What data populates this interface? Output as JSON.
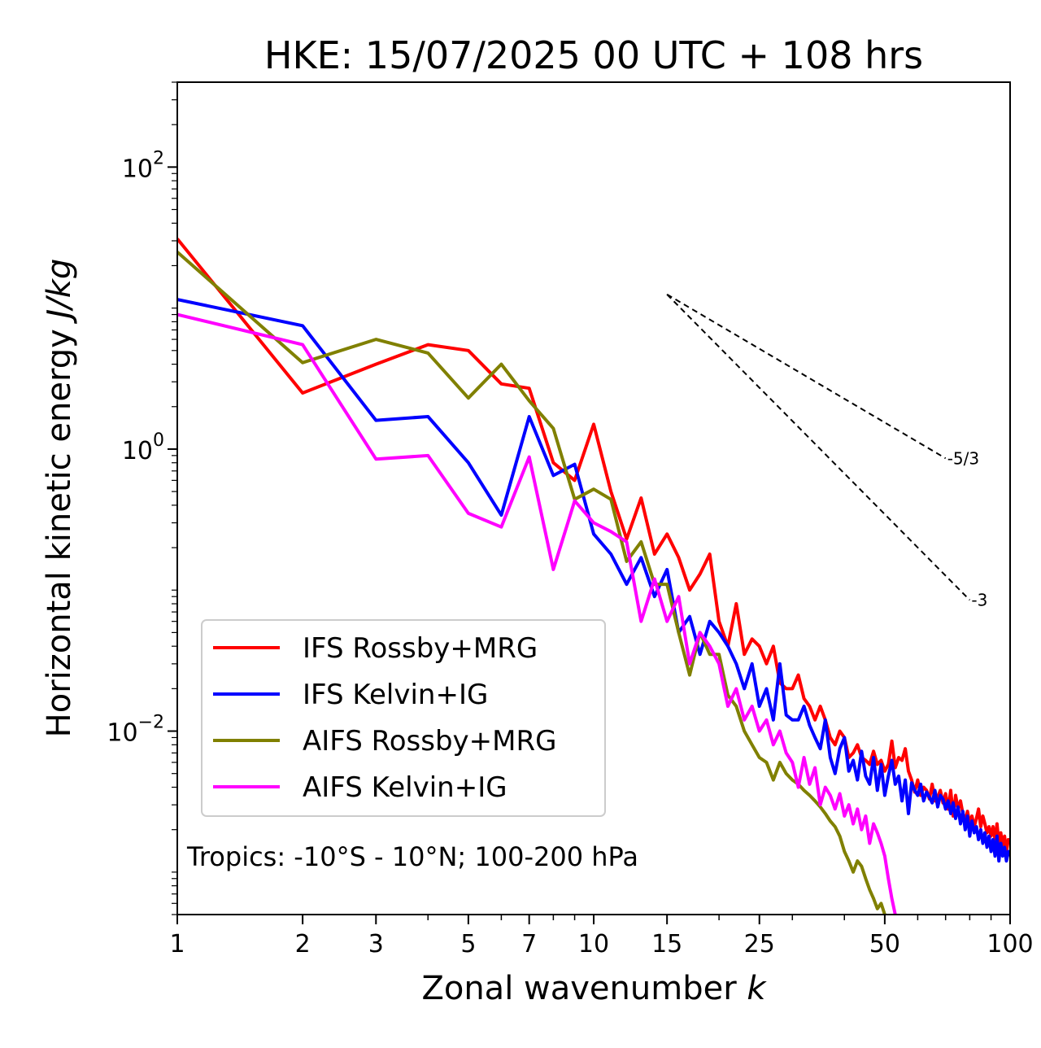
{
  "chart_data": {
    "type": "line",
    "title": "HKE: 15/07/2025 00 UTC + 108 hrs",
    "xlabel": "Zonal wavenumber",
    "xlabel_var": "k",
    "ylabel": "Horizontal kinetic energy",
    "ylabel_unit": "J/kg",
    "xscale": "log",
    "yscale": "log",
    "xlim": [
      1,
      100
    ],
    "ylim": [
      0.0005,
      400
    ],
    "x_ticks": [
      {
        "value": 1,
        "label": "1"
      },
      {
        "value": 2,
        "label": "2"
      },
      {
        "value": 3,
        "label": "3"
      },
      {
        "value": 5,
        "label": "5"
      },
      {
        "value": 7,
        "label": "7"
      },
      {
        "value": 10,
        "label": "10"
      },
      {
        "value": 15,
        "label": "15"
      },
      {
        "value": 25,
        "label": "25"
      },
      {
        "value": 50,
        "label": "50"
      },
      {
        "value": 100,
        "label": "100"
      }
    ],
    "y_ticks": [
      {
        "value": 0.01,
        "base": "10",
        "exp": "−2"
      },
      {
        "value": 1,
        "base": "10",
        "exp": "0"
      },
      {
        "value": 100,
        "base": "10",
        "exp": "2"
      }
    ],
    "annotation": "Tropics: -10°S - 10°N; 100-200 hPa",
    "legend_position": "lower-left",
    "slope_lines": [
      {
        "label": "-5/3",
        "x": [
          15,
          70
        ],
        "y": [
          12.5,
          0.86
        ]
      },
      {
        "label": "-3",
        "x": [
          15,
          80
        ],
        "y": [
          12.5,
          0.085
        ]
      }
    ],
    "series": [
      {
        "name": "IFS Rossby+MRG",
        "color": "#ff0000",
        "points": [
          [
            1,
            31
          ],
          [
            2,
            2.5
          ],
          [
            3,
            4.0
          ],
          [
            4,
            5.5
          ],
          [
            5,
            5.0
          ],
          [
            6,
            2.9
          ],
          [
            7,
            2.7
          ],
          [
            8,
            0.8
          ],
          [
            9,
            0.6
          ],
          [
            10,
            1.5
          ],
          [
            11,
            0.5
          ],
          [
            12,
            0.23
          ],
          [
            13,
            0.45
          ],
          [
            14,
            0.18
          ],
          [
            15,
            0.25
          ],
          [
            16,
            0.17
          ],
          [
            17,
            0.1
          ],
          [
            18,
            0.13
          ],
          [
            19,
            0.18
          ],
          [
            20,
            0.06
          ],
          [
            21,
            0.04
          ],
          [
            22,
            0.08
          ],
          [
            23,
            0.035
          ],
          [
            24,
            0.045
          ],
          [
            25,
            0.04
          ],
          [
            26,
            0.03
          ],
          [
            27,
            0.04
          ],
          [
            28,
            0.022
          ],
          [
            29,
            0.02
          ],
          [
            30,
            0.02
          ],
          [
            31,
            0.025
          ],
          [
            32,
            0.017
          ],
          [
            33,
            0.015
          ],
          [
            34,
            0.012
          ],
          [
            35,
            0.015
          ],
          [
            36,
            0.012
          ],
          [
            37,
            0.009
          ],
          [
            38,
            0.008
          ],
          [
            39,
            0.01
          ],
          [
            40,
            0.009
          ],
          [
            41,
            0.0065
          ],
          [
            42,
            0.007
          ],
          [
            43,
            0.008
          ],
          [
            44,
            0.0065
          ],
          [
            45,
            0.0062
          ],
          [
            46,
            0.0058
          ],
          [
            47,
            0.0072
          ],
          [
            48,
            0.0058
          ],
          [
            49,
            0.0062
          ],
          [
            50,
            0.0052
          ],
          [
            51,
            0.0058
          ],
          [
            52,
            0.0085
          ],
          [
            53,
            0.0055
          ],
          [
            54,
            0.0065
          ],
          [
            55,
            0.0062
          ],
          [
            56,
            0.0075
          ],
          [
            57,
            0.0052
          ],
          [
            58,
            0.0045
          ],
          [
            59,
            0.0037
          ],
          [
            60,
            0.0045
          ],
          [
            61,
            0.0035
          ],
          [
            62,
            0.004
          ],
          [
            63,
            0.0038
          ],
          [
            64,
            0.0033
          ],
          [
            65,
            0.0042
          ],
          [
            66,
            0.0032
          ],
          [
            67,
            0.0034
          ],
          [
            68,
            0.0038
          ],
          [
            69,
            0.0031
          ],
          [
            70,
            0.0036
          ],
          [
            71,
            0.0028
          ],
          [
            72,
            0.0038
          ],
          [
            73,
            0.0025
          ],
          [
            74,
            0.0035
          ],
          [
            75,
            0.0028
          ],
          [
            76,
            0.0032
          ],
          [
            77,
            0.0026
          ],
          [
            78,
            0.0023
          ],
          [
            79,
            0.0027
          ],
          [
            80,
            0.0022
          ],
          [
            81,
            0.0025
          ],
          [
            82,
            0.0021
          ],
          [
            83,
            0.0024
          ],
          [
            84,
            0.0028
          ],
          [
            85,
            0.0021
          ],
          [
            86,
            0.0025
          ],
          [
            87,
            0.0022
          ],
          [
            88,
            0.0019
          ],
          [
            89,
            0.0021
          ],
          [
            90,
            0.0018
          ],
          [
            91,
            0.0021
          ],
          [
            92,
            0.0017
          ],
          [
            93,
            0.0022
          ],
          [
            94,
            0.0016
          ],
          [
            95,
            0.0019
          ],
          [
            96,
            0.0015
          ],
          [
            97,
            0.0018
          ],
          [
            98,
            0.0014
          ],
          [
            99,
            0.0017
          ],
          [
            100,
            0.0016
          ]
        ]
      },
      {
        "name": "IFS Kelvin+IG",
        "color": "#0000ff",
        "points": [
          [
            1,
            11.5
          ],
          [
            2,
            7.5
          ],
          [
            3,
            1.6
          ],
          [
            4,
            1.7
          ],
          [
            5,
            0.8
          ],
          [
            6,
            0.34
          ],
          [
            7,
            1.7
          ],
          [
            8,
            0.65
          ],
          [
            9,
            0.78
          ],
          [
            10,
            0.25
          ],
          [
            11,
            0.18
          ],
          [
            12,
            0.11
          ],
          [
            13,
            0.17
          ],
          [
            14,
            0.09
          ],
          [
            15,
            0.14
          ],
          [
            16,
            0.05
          ],
          [
            17,
            0.065
          ],
          [
            18,
            0.035
          ],
          [
            19,
            0.06
          ],
          [
            20,
            0.05
          ],
          [
            21,
            0.04
          ],
          [
            22,
            0.03
          ],
          [
            23,
            0.02
          ],
          [
            24,
            0.03
          ],
          [
            25,
            0.015
          ],
          [
            26,
            0.02
          ],
          [
            27,
            0.012
          ],
          [
            28,
            0.03
          ],
          [
            29,
            0.013
          ],
          [
            30,
            0.012
          ],
          [
            31,
            0.012
          ],
          [
            32,
            0.015
          ],
          [
            33,
            0.011
          ],
          [
            34,
            0.009
          ],
          [
            35,
            0.0075
          ],
          [
            36,
            0.012
          ],
          [
            37,
            0.0065
          ],
          [
            38,
            0.005
          ],
          [
            39,
            0.0075
          ],
          [
            40,
            0.009
          ],
          [
            41,
            0.0052
          ],
          [
            42,
            0.0062
          ],
          [
            43,
            0.0045
          ],
          [
            44,
            0.0072
          ],
          [
            45,
            0.0048
          ],
          [
            46,
            0.0042
          ],
          [
            47,
            0.0065
          ],
          [
            48,
            0.0038
          ],
          [
            49,
            0.0058
          ],
          [
            50,
            0.0035
          ],
          [
            51,
            0.0048
          ],
          [
            52,
            0.0062
          ],
          [
            53,
            0.0042
          ],
          [
            54,
            0.0048
          ],
          [
            55,
            0.0032
          ],
          [
            56,
            0.0045
          ],
          [
            57,
            0.0026
          ],
          [
            58,
            0.0043
          ],
          [
            59,
            0.0038
          ],
          [
            60,
            0.0035
          ],
          [
            61,
            0.0042
          ],
          [
            62,
            0.0032
          ],
          [
            63,
            0.0037
          ],
          [
            64,
            0.0034
          ],
          [
            65,
            0.0031
          ],
          [
            66,
            0.0038
          ],
          [
            67,
            0.0029
          ],
          [
            68,
            0.0035
          ],
          [
            69,
            0.0033
          ],
          [
            70,
            0.0028
          ],
          [
            71,
            0.0032
          ],
          [
            72,
            0.0026
          ],
          [
            73,
            0.0031
          ],
          [
            74,
            0.0024
          ],
          [
            75,
            0.0029
          ],
          [
            76,
            0.0022
          ],
          [
            77,
            0.0027
          ],
          [
            78,
            0.002
          ],
          [
            79,
            0.0025
          ],
          [
            80,
            0.0018
          ],
          [
            81,
            0.0023
          ],
          [
            82,
            0.0019
          ],
          [
            83,
            0.0021
          ],
          [
            84,
            0.0017
          ],
          [
            85,
            0.002
          ],
          [
            86,
            0.0016
          ],
          [
            87,
            0.0019
          ],
          [
            88,
            0.0015
          ],
          [
            89,
            0.0018
          ],
          [
            90,
            0.0014
          ],
          [
            91,
            0.0017
          ],
          [
            92,
            0.0013
          ],
          [
            93,
            0.0018
          ],
          [
            94,
            0.0012
          ],
          [
            95,
            0.0016
          ],
          [
            96,
            0.0013
          ],
          [
            97,
            0.0015
          ],
          [
            98,
            0.0012
          ],
          [
            99,
            0.0014
          ],
          [
            100,
            0.0013
          ]
        ]
      },
      {
        "name": "AIFS Rossby+MRG",
        "color": "#808000",
        "points": [
          [
            1,
            25
          ],
          [
            2,
            4.1
          ],
          [
            3,
            6.0
          ],
          [
            4,
            4.8
          ],
          [
            5,
            2.3
          ],
          [
            6,
            4.0
          ],
          [
            7,
            2.2
          ],
          [
            8,
            1.4
          ],
          [
            9,
            0.44
          ],
          [
            10,
            0.52
          ],
          [
            11,
            0.44
          ],
          [
            12,
            0.16
          ],
          [
            13,
            0.22
          ],
          [
            14,
            0.11
          ],
          [
            15,
            0.11
          ],
          [
            16,
            0.05
          ],
          [
            17,
            0.025
          ],
          [
            18,
            0.05
          ],
          [
            19,
            0.035
          ],
          [
            20,
            0.035
          ],
          [
            21,
            0.018
          ],
          [
            22,
            0.015
          ],
          [
            23,
            0.01
          ],
          [
            24,
            0.008
          ],
          [
            25,
            0.0065
          ],
          [
            26,
            0.006
          ],
          [
            27,
            0.0045
          ],
          [
            28,
            0.006
          ],
          [
            29,
            0.005
          ],
          [
            30,
            0.0045
          ],
          [
            31,
            0.0042
          ],
          [
            32,
            0.0038
          ],
          [
            33,
            0.0035
          ],
          [
            34,
            0.0032
          ],
          [
            35,
            0.0029
          ],
          [
            36,
            0.0026
          ],
          [
            37,
            0.0023
          ],
          [
            38,
            0.0021
          ],
          [
            39,
            0.0018
          ],
          [
            40,
            0.0014
          ],
          [
            41,
            0.0012
          ],
          [
            42,
            0.001
          ],
          [
            43,
            0.0012
          ],
          [
            44,
            0.0011
          ],
          [
            45,
            0.0009
          ],
          [
            46,
            0.00075
          ],
          [
            47,
            0.00065
          ],
          [
            48,
            0.00055
          ],
          [
            49,
            0.0006
          ],
          [
            50,
            0.0005
          ]
        ]
      },
      {
        "name": "AIFS Kelvin+IG",
        "color": "#ff00ff",
        "points": [
          [
            1,
            9.0
          ],
          [
            2,
            5.5
          ],
          [
            3,
            0.85
          ],
          [
            4,
            0.9
          ],
          [
            5,
            0.35
          ],
          [
            6,
            0.28
          ],
          [
            7,
            0.88
          ],
          [
            8,
            0.14
          ],
          [
            9,
            0.43
          ],
          [
            10,
            0.3
          ],
          [
            11,
            0.26
          ],
          [
            12,
            0.22
          ],
          [
            13,
            0.06
          ],
          [
            14,
            0.12
          ],
          [
            15,
            0.06
          ],
          [
            16,
            0.09
          ],
          [
            17,
            0.03
          ],
          [
            18,
            0.05
          ],
          [
            19,
            0.04
          ],
          [
            20,
            0.03
          ],
          [
            21,
            0.015
          ],
          [
            22,
            0.02
          ],
          [
            23,
            0.012
          ],
          [
            24,
            0.015
          ],
          [
            25,
            0.01
          ],
          [
            26,
            0.012
          ],
          [
            27,
            0.008
          ],
          [
            28,
            0.01
          ],
          [
            29,
            0.007
          ],
          [
            30,
            0.006
          ],
          [
            31,
            0.004
          ],
          [
            32,
            0.0065
          ],
          [
            33,
            0.0042
          ],
          [
            34,
            0.0055
          ],
          [
            35,
            0.003
          ],
          [
            36,
            0.004
          ],
          [
            37,
            0.0035
          ],
          [
            38,
            0.0028
          ],
          [
            39,
            0.0036
          ],
          [
            40,
            0.0025
          ],
          [
            41,
            0.003
          ],
          [
            42,
            0.0022
          ],
          [
            43,
            0.0028
          ],
          [
            44,
            0.002
          ],
          [
            45,
            0.0025
          ],
          [
            46,
            0.0016
          ],
          [
            47,
            0.0022
          ],
          [
            48,
            0.0019
          ],
          [
            49,
            0.0016
          ],
          [
            50,
            0.0013
          ],
          [
            51,
            0.0009
          ],
          [
            52,
            0.00065
          ],
          [
            53,
            0.0005
          ]
        ]
      }
    ]
  }
}
